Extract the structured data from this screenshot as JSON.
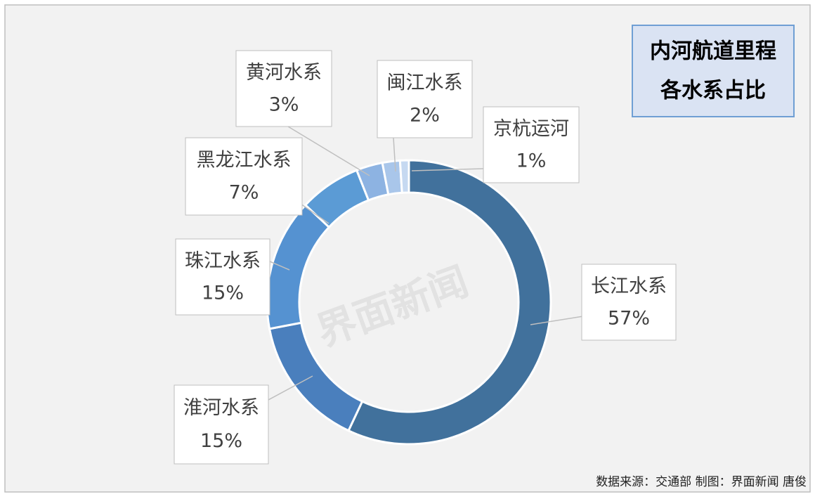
{
  "chart_data": {
    "type": "donut",
    "title": [
      "内河航道里程",
      "各水系占比"
    ],
    "categories": [
      "长江水系",
      "淮河水系",
      "珠江水系",
      "黑龙江水系",
      "黄河水系",
      "闽江水系",
      "京杭运河"
    ],
    "values": [
      57,
      15,
      15,
      7,
      3,
      2,
      1
    ],
    "value_labels": [
      "57%",
      "15%",
      "15%",
      "7%",
      "3%",
      "2%",
      "1%"
    ],
    "colors": [
      "#41719c",
      "#4a7fbd",
      "#5592d1",
      "#5b9bd5",
      "#8db3e2",
      "#a9c6ea",
      "#c6d9f1"
    ],
    "source": "数据来源：交通部   制图：界面新闻 唐俊",
    "watermark": "界面新闻"
  }
}
